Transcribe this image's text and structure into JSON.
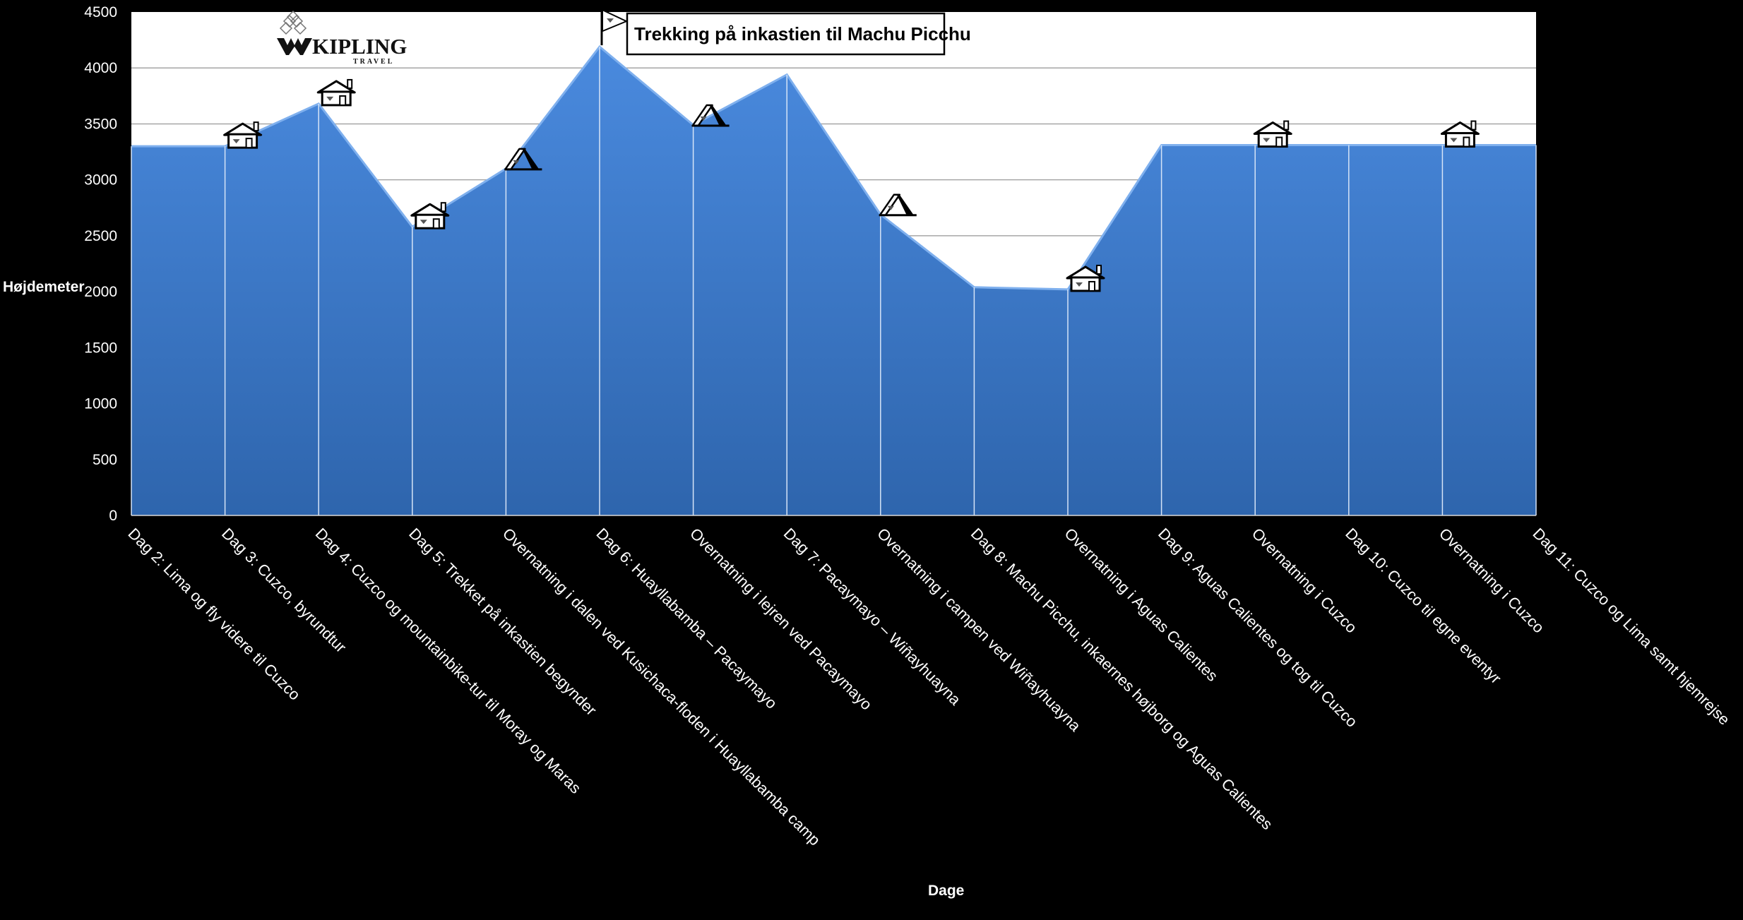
{
  "chart_data": {
    "type": "area",
    "title": "Trekking på inkastien til Machu Picchu",
    "xlabel": "Dage",
    "ylabel": "Højdemeter",
    "ylim": [
      0,
      4500
    ],
    "yticks": [
      0,
      500,
      1000,
      1500,
      2000,
      2500,
      3000,
      3500,
      4000,
      4500
    ],
    "grid": true,
    "categories": [
      "Dag 2: Lima og fly videre til Cuzco",
      "Dag 3: Cuzco, byrundtur",
      "Dag 4: Cuzco og mountainbike-tur til Moray og Maras",
      "Dag 5: Trekket på inkastien begynder",
      "Overnatning  i dalen ved Kusichaca-floden i Huayllabamba camp",
      "Dag 6: Huayllabamba – Pacaymayo",
      "Overnatning i lejren ved Pacaymayo",
      "Dag 7: Pacaymayo – Wiñayhuayna",
      "Overnatning i campen ved Wiñayhuayna",
      "Dag 8: Machu Picchu, inkaernes højborg og Aguas Calientes",
      "Overnatning i Aguas Calientes",
      "Dag 9: Aguas Calientes og tog til Cuzco",
      "Overnatning i Cuzco",
      "Dag 10: Cuzco til egne eventyr",
      "Overnatning i Cuzco",
      "Dag 11:  Cuzco og Lima samt hjemrejse"
    ],
    "values": [
      3300,
      3300,
      3680,
      2580,
      3100,
      4190,
      3490,
      3940,
      2690,
      2040,
      2020,
      3310,
      3310,
      3310,
      3310,
      3310
    ],
    "markers": [
      {
        "index": 1,
        "icon": "house-icon"
      },
      {
        "index": 2,
        "icon": "house-icon"
      },
      {
        "index": 3,
        "icon": "house-icon"
      },
      {
        "index": 4,
        "icon": "tent-icon"
      },
      {
        "index": 5,
        "icon": "flag-icon"
      },
      {
        "index": 6,
        "icon": "tent-icon"
      },
      {
        "index": 8,
        "icon": "tent-icon"
      },
      {
        "index": 10,
        "icon": "house-icon"
      },
      {
        "index": 12,
        "icon": "house-icon"
      },
      {
        "index": 14,
        "icon": "house-icon"
      }
    ],
    "colors": {
      "area_top": "#4a8ade",
      "area_bottom": "#2e65ad",
      "plot_background": "#ffffff",
      "page_background": "#000000",
      "gridline": "#a6a6a6"
    }
  },
  "logo": {
    "name": "KIPLING",
    "sub": "TRAVEL"
  }
}
